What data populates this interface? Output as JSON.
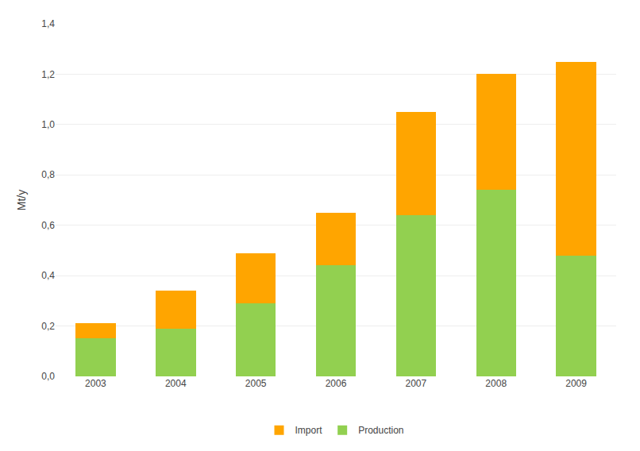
{
  "chart_data": {
    "type": "bar",
    "stacked": true,
    "categories": [
      "2003",
      "2004",
      "2005",
      "2006",
      "2007",
      "2008",
      "2009"
    ],
    "series": [
      {
        "name": "Production",
        "color": "#92d050",
        "values": [
          0.15,
          0.19,
          0.29,
          0.44,
          0.64,
          0.74,
          0.48
        ]
      },
      {
        "name": "Import",
        "color": "#ffa500",
        "values": [
          0.06,
          0.15,
          0.2,
          0.21,
          0.41,
          0.46,
          0.77
        ]
      }
    ],
    "ylabel": "Mt/y",
    "ylim": [
      0,
      1.4
    ],
    "yticks": [
      {
        "value": 0.0,
        "label": "0,0"
      },
      {
        "value": 0.2,
        "label": "0,2"
      },
      {
        "value": 0.4,
        "label": "0,4"
      },
      {
        "value": 0.6,
        "label": "0,6"
      },
      {
        "value": 0.8,
        "label": "0,8"
      },
      {
        "value": 1.0,
        "label": "1,0"
      },
      {
        "value": 1.2,
        "label": "1,2"
      },
      {
        "value": 1.4,
        "label": "1,4"
      }
    ],
    "grid": true,
    "legend": "bottom"
  }
}
